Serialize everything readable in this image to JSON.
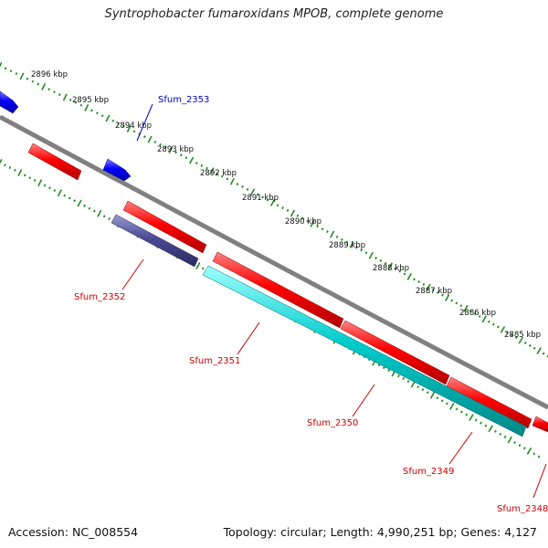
{
  "title": "Syntrophobacter fumaroxidans MPOB, complete genome",
  "accession": "Accession: NC_008554",
  "topology": "Topology: circular; Length: 4,990,251 bp; Genes: 4,127",
  "ticks": [
    "2896 kbp",
    "2895 kbp",
    "2894 kbp",
    "2893 kbp",
    "2892 kbp",
    "2891 kbp",
    "2890 kbp",
    "2889 kbp",
    "2888 kbp",
    "2887 kbp",
    "2886 kbp",
    "2885 kbp"
  ],
  "colors": {
    "backbone": "#808080",
    "ruler": "#228b22",
    "red_gene": "#ff0000",
    "blue_gene": "#0000ff",
    "purple_gene": "#4b4b96",
    "cyan_gene": "#00cccc",
    "label_red": "#cc0000",
    "label_blue": "#0000cc"
  },
  "genes": [
    {
      "label": "Sfum_2353",
      "color": "blue"
    },
    {
      "label": "Sfum_2352",
      "color": "red"
    },
    {
      "label": "Sfum_2351",
      "color": "red"
    },
    {
      "label": "Sfum_2350",
      "color": "red"
    },
    {
      "label": "Sfum_2349",
      "color": "red"
    },
    {
      "label": "Sfum_2348",
      "color": "red"
    }
  ]
}
